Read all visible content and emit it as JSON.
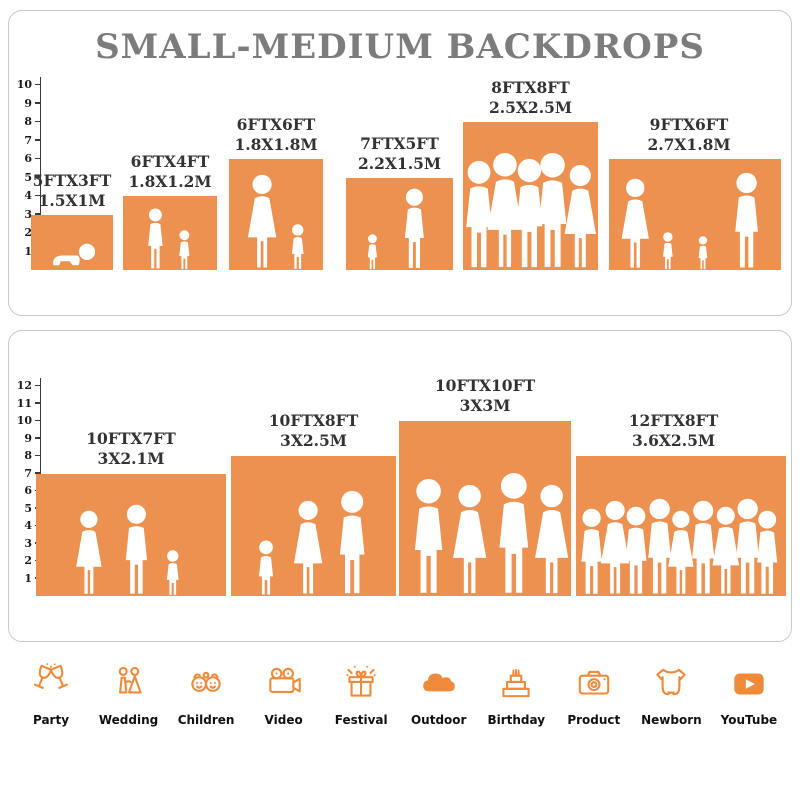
{
  "title": "SMALL-MEDIUM BACKDROPS",
  "colors": {
    "bar_orange": "#ED9151",
    "icon_orange": "#EF8A3B",
    "title_gray": "#7C7C7C"
  },
  "panels": [
    {
      "id": "small-medium",
      "ruler_max": 10,
      "bars": [
        {
          "ft": "5FTX3FT",
          "m": "1.5X1M",
          "height_ft": 3
        },
        {
          "ft": "6FTX4FT",
          "m": "1.8X1.2M",
          "height_ft": 4
        },
        {
          "ft": "6FTX6FT",
          "m": "1.8X1.8M",
          "height_ft": 6
        },
        {
          "ft": "7FTX5FT",
          "m": "2.2X1.5M",
          "height_ft": 5
        },
        {
          "ft": "8FTX8FT",
          "m": "2.5X2.5M",
          "height_ft": 8
        },
        {
          "ft": "9FTX6FT",
          "m": "2.7X1.8M",
          "height_ft": 6
        }
      ]
    },
    {
      "id": "large",
      "ruler_max": 12,
      "bars": [
        {
          "ft": "10FTX7FT",
          "m": "3X2.1M",
          "height_ft": 7
        },
        {
          "ft": "10FTX8FT",
          "m": "3X2.5M",
          "height_ft": 8
        },
        {
          "ft": "10FTX10FT",
          "m": "3X3M",
          "height_ft": 10
        },
        {
          "ft": "12FTX8FT",
          "m": "3.6X2.5M",
          "height_ft": 8
        }
      ]
    }
  ],
  "categories": [
    {
      "label": "Party",
      "icon": "party-icon"
    },
    {
      "label": "Wedding",
      "icon": "wedding-icon"
    },
    {
      "label": "Children",
      "icon": "children-icon"
    },
    {
      "label": "Video",
      "icon": "video-icon"
    },
    {
      "label": "Festival",
      "icon": "festival-icon"
    },
    {
      "label": "Outdoor",
      "icon": "outdoor-icon"
    },
    {
      "label": "Birthday",
      "icon": "birthday-icon"
    },
    {
      "label": "Product",
      "icon": "product-icon"
    },
    {
      "label": "Newborn",
      "icon": "newborn-icon"
    },
    {
      "label": "YouTube",
      "icon": "youtube-icon"
    }
  ]
}
